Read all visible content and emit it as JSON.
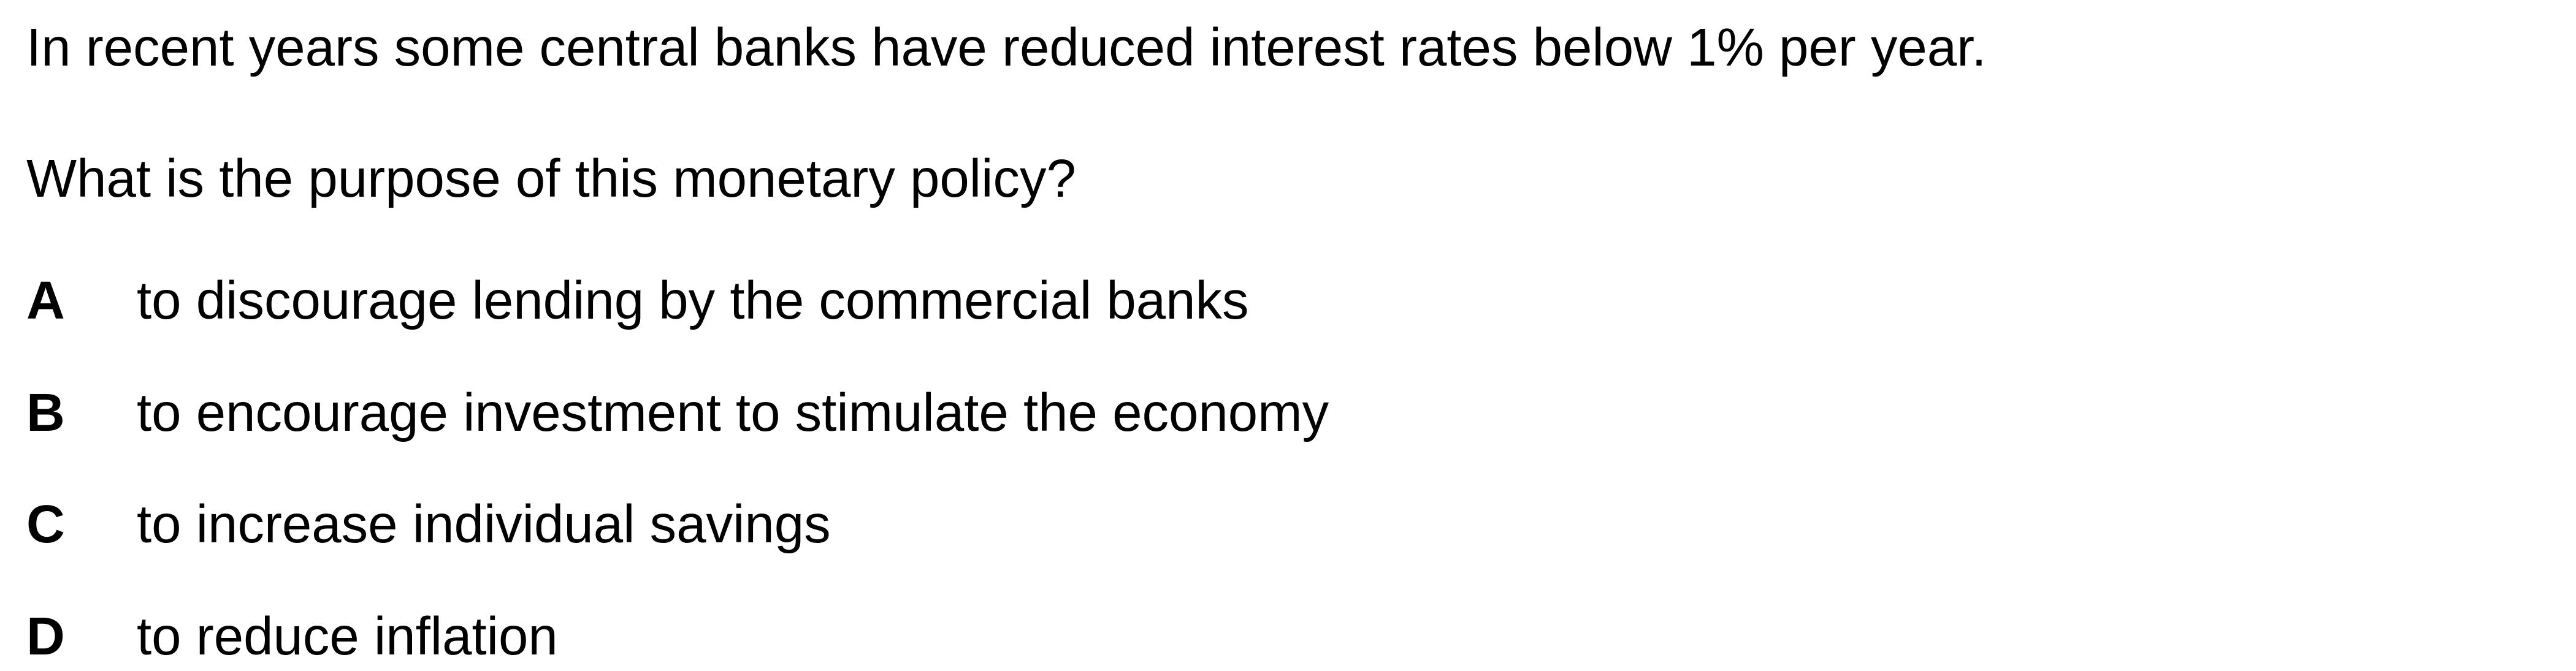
{
  "question": {
    "intro": "In recent years some central banks have reduced interest rates below 1% per year.",
    "prompt": "What is the purpose of this monetary policy?",
    "options": [
      {
        "letter": "A",
        "text": "to discourage lending by the commercial banks"
      },
      {
        "letter": "B",
        "text": "to encourage investment to stimulate the economy"
      },
      {
        "letter": "C",
        "text": "to increase individual savings"
      },
      {
        "letter": "D",
        "text": "to reduce inflation"
      }
    ]
  }
}
